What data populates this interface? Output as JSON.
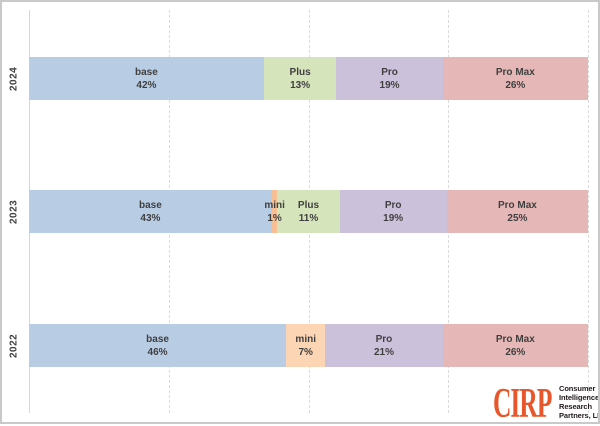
{
  "chart_data": {
    "type": "bar",
    "orientation": "horizontal-stacked",
    "title": "",
    "xlabel": "",
    "ylabel": "",
    "xlim": [
      0,
      100
    ],
    "grid": "dashed-vertical",
    "gridlines_percent": [
      25,
      50,
      75,
      100
    ],
    "legend_position": "none",
    "categories": [
      "2024",
      "2023",
      "2022"
    ],
    "segment_names": [
      "base",
      "mini",
      "Plus",
      "Pro",
      "Pro Max"
    ],
    "rows": [
      {
        "year": "2024",
        "segments": [
          {
            "label": "base",
            "value": 42,
            "display": "42%",
            "color": "#B8CCE4"
          },
          {
            "label": "Plus",
            "value": 13,
            "display": "13%",
            "color": "#D6E4BC"
          },
          {
            "label": "Pro",
            "value": 19,
            "display": "19%",
            "color": "#CCC1DA"
          },
          {
            "label": "Pro Max",
            "value": 26,
            "display": "26%",
            "color": "#E5B8B7"
          }
        ]
      },
      {
        "year": "2023",
        "segments": [
          {
            "label": "base",
            "value": 43,
            "display": "43%",
            "color": "#B8CCE4"
          },
          {
            "label": "mini",
            "value": 1,
            "display": "1%",
            "color": "#F7BF93"
          },
          {
            "label": "Plus",
            "value": 11,
            "display": "11%",
            "color": "#D6E4BC"
          },
          {
            "label": "Pro",
            "value": 19,
            "display": "19%",
            "color": "#CCC1DA"
          },
          {
            "label": "Pro Max",
            "value": 25,
            "display": "25%",
            "color": "#E5B8B7"
          }
        ]
      },
      {
        "year": "2022",
        "segments": [
          {
            "label": "base",
            "value": 46,
            "display": "46%",
            "color": "#B8CCE4"
          },
          {
            "label": "mini",
            "value": 7,
            "display": "7%",
            "color": "#FCD5B4"
          },
          {
            "label": "Pro",
            "value": 21,
            "display": "21%",
            "color": "#CCC1DA"
          },
          {
            "label": "Pro Max",
            "value": 26,
            "display": "26%",
            "color": "#E5B8B7"
          }
        ]
      }
    ]
  },
  "colors": {
    "axis_line": "#d6d6d6",
    "gridline": "#dbdbdb",
    "bar_label_text": "#3f3f3f",
    "year_label_text": "#404040",
    "logo_orange": "#e8572c"
  },
  "logo": {
    "name": "CIRP",
    "lines": [
      "Consumer",
      "Intelligence",
      "Research",
      "Partners, LLC"
    ]
  }
}
